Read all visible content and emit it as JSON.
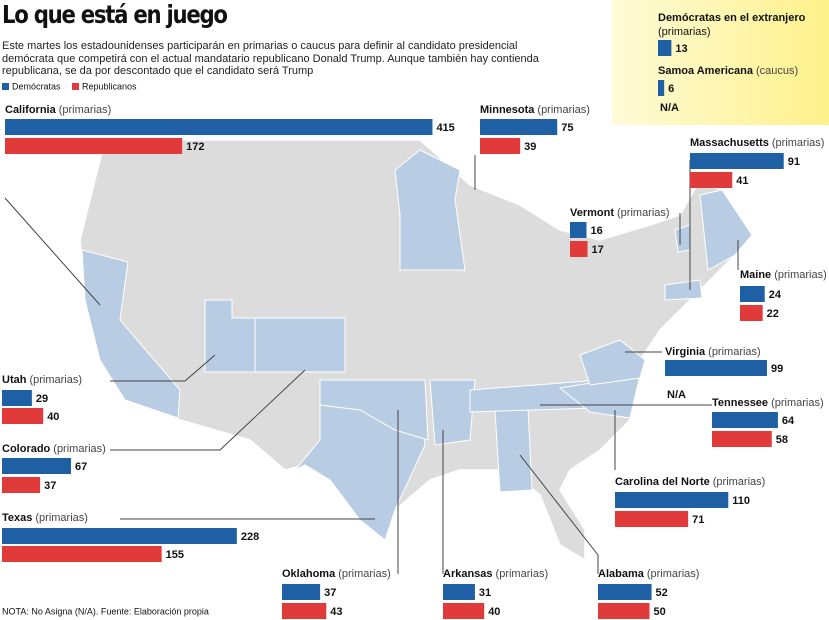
{
  "title": "Lo que está en juego",
  "subtitle": "Este martes los estadounidenses participarán en primarias o caucus para definir al candidato presidencial demócrata que competirá con el actual mandatario republicano Donald Trump. Aunque también hay contienda republicana, se da por descontado que el candidato será Trump",
  "legend": [
    {
      "name": "Demócratas",
      "color": "#1f5fa3"
    },
    {
      "name": "Republicanos",
      "color": "#e03a3a"
    }
  ],
  "territories": [
    {
      "name": "Demócratas en el extranjero",
      "note": "(primarias)",
      "democrats": 13
    },
    {
      "name": "Samoa Americana",
      "note": "(caucus)",
      "democrats": 6,
      "republicans": "N/A"
    }
  ],
  "states": [
    {
      "name": "California",
      "note": "(primarias)",
      "democrats": 415,
      "republicans": 172
    },
    {
      "name": "Minnesota",
      "note": "(primarias)",
      "democrats": 75,
      "republicans": 39
    },
    {
      "name": "Massachusetts",
      "note": "(primarias)",
      "democrats": 91,
      "republicans": 41
    },
    {
      "name": "Vermont",
      "note": "(primarias)",
      "democrats": 16,
      "republicans": 17
    },
    {
      "name": "Maine",
      "note": "(primarias)",
      "democrats": 24,
      "republicans": 22
    },
    {
      "name": "Virginia",
      "note": "(primarias)",
      "democrats": 99,
      "republicans": "N/A"
    },
    {
      "name": "Tennessee",
      "note": "(primarias)",
      "democrats": 64,
      "republicans": 58
    },
    {
      "name": "Carolina del Norte",
      "note": "(primarias)",
      "democrats": 110,
      "republicans": 71
    },
    {
      "name": "Utah",
      "note": "(primarias)",
      "democrats": 29,
      "republicans": 40
    },
    {
      "name": "Colorado",
      "note": "(primarias)",
      "democrats": 67,
      "republicans": 37
    },
    {
      "name": "Texas",
      "note": "(primarias)",
      "democrats": 228,
      "republicans": 155
    },
    {
      "name": "Oklahoma",
      "note": "(primarias)",
      "democrats": 37,
      "republicans": 43
    },
    {
      "name": "Arkansas",
      "note": "(primarias)",
      "democrats": 31,
      "republicans": 40
    },
    {
      "name": "Alabama",
      "note": "(primarias)",
      "democrats": 52,
      "republicans": 50
    }
  ],
  "footnote": "NOTA: No Asigna (N/A). Fuente: Elaboración propia"
}
